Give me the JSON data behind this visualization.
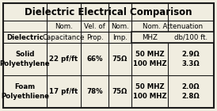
{
  "title": "Dielectric Electrical Comparison",
  "col_headers_row1": [
    "",
    "Nom.",
    "Vel. of",
    "Nom.",
    "Nom. Attenuation"
  ],
  "col_headers_row2": [
    "Dielectric",
    "Capacitance",
    "Prop.",
    "Imp.",
    "MHZ",
    "db/100 ft."
  ],
  "rows": [
    [
      "Solid\nPolyethylene",
      "22 pf/ft",
      "66%",
      "75Ω",
      "50 MHZ\n100 MHZ",
      "2.9Ω\n3.3Ω"
    ],
    [
      "Foam\nPolyethliene",
      "17 pf/ft",
      "78%",
      "75Ω",
      "50 MHZ\n100 MHZ",
      "2.0Ω\n2.8Ω"
    ]
  ],
  "bg_color": "#f0ede0",
  "border_color": "#1a1a1a",
  "title_fontsize": 8.5,
  "header_fontsize": 6.2,
  "cell_fontsize": 6.2,
  "fig_w": 2.74,
  "fig_h": 1.4,
  "dpi": 100
}
